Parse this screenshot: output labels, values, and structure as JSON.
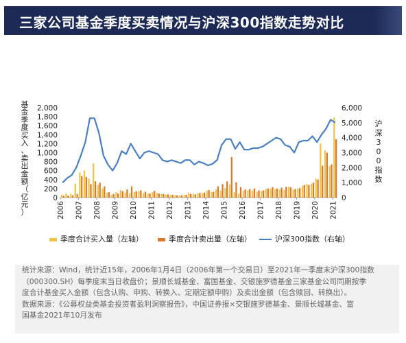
{
  "header": {
    "title": "三家公司基金季度买卖情况与沪深300指数走势对比"
  },
  "chart_data": {
    "type": "bar+line",
    "left_axis_label": "基金季度买入、卖出金额（亿元）",
    "right_axis_label": "沪深300指数",
    "left_ylim": [
      0,
      2000
    ],
    "left_ticks": [
      "0",
      "200",
      "400",
      "600",
      "800",
      "1,000",
      "1,200",
      "1,400",
      "1,600",
      "1,800",
      "2,000"
    ],
    "right_ylim": [
      0,
      6000
    ],
    "right_ticks": [
      "0",
      "1,000",
      "2,000",
      "3,000",
      "4,000",
      "5,000",
      "6,000"
    ],
    "x_ticks": [
      "2006",
      "2007",
      "2008",
      "2009",
      "2010",
      "2011",
      "2012",
      "2013",
      "2014",
      "2015",
      "2016",
      "2017",
      "2018",
      "2019",
      "2020",
      "2021"
    ],
    "x_range": [
      2006.0,
      2021.25
    ],
    "quarters": [
      "2006Q1",
      "2006Q2",
      "2006Q3",
      "2006Q4",
      "2007Q1",
      "2007Q2",
      "2007Q3",
      "2007Q4",
      "2008Q1",
      "2008Q2",
      "2008Q3",
      "2008Q4",
      "2009Q1",
      "2009Q2",
      "2009Q3",
      "2009Q4",
      "2010Q1",
      "2010Q2",
      "2010Q3",
      "2010Q4",
      "2011Q1",
      "2011Q2",
      "2011Q3",
      "2011Q4",
      "2012Q1",
      "2012Q2",
      "2012Q3",
      "2012Q4",
      "2013Q1",
      "2013Q2",
      "2013Q3",
      "2013Q4",
      "2014Q1",
      "2014Q2",
      "2014Q3",
      "2014Q4",
      "2015Q1",
      "2015Q2",
      "2015Q3",
      "2015Q4",
      "2016Q1",
      "2016Q2",
      "2016Q3",
      "2016Q4",
      "2017Q1",
      "2017Q2",
      "2017Q3",
      "2017Q4",
      "2018Q1",
      "2018Q2",
      "2018Q3",
      "2018Q4",
      "2019Q1",
      "2019Q2",
      "2019Q3",
      "2019Q4",
      "2020Q1",
      "2020Q2",
      "2020Q3",
      "2020Q4",
      "2021Q1"
    ],
    "series": [
      {
        "name": "季度合计买入量（左轴）",
        "axis": "left",
        "color": "#f0c348",
        "values": [
          60,
          90,
          80,
          310,
          560,
          600,
          420,
          760,
          280,
          200,
          110,
          60,
          120,
          170,
          110,
          100,
          120,
          140,
          100,
          90,
          120,
          100,
          80,
          70,
          60,
          60,
          50,
          60,
          110,
          80,
          100,
          100,
          150,
          120,
          180,
          150,
          210,
          290,
          120,
          90,
          150,
          160,
          150,
          130,
          150,
          190,
          200,
          190,
          180,
          170,
          240,
          180,
          200,
          260,
          300,
          310,
          420,
          1200,
          1050,
          700,
          1780
        ]
      },
      {
        "name": "季度合计卖出量（左轴）",
        "axis": "left",
        "color": "#d97a2a",
        "values": [
          40,
          40,
          50,
          80,
          480,
          460,
          300,
          360,
          330,
          250,
          120,
          80,
          90,
          140,
          180,
          250,
          140,
          160,
          130,
          90,
          150,
          90,
          80,
          70,
          60,
          50,
          50,
          60,
          80,
          70,
          100,
          110,
          170,
          130,
          250,
          300,
          360,
          900,
          340,
          230,
          180,
          190,
          200,
          160,
          160,
          200,
          230,
          200,
          220,
          240,
          230,
          190,
          210,
          280,
          280,
          330,
          400,
          710,
          1000,
          740,
          1300
        ]
      },
      {
        "name": "沪深300指数（右轴）",
        "axis": "right",
        "color": "#4a7fc0",
        "values": [
          1000,
          1300,
          1500,
          2000,
          2800,
          3700,
          5300,
          5300,
          4300,
          2800,
          2200,
          1800,
          2300,
          3100,
          2900,
          3600,
          3100,
          2600,
          3000,
          3100,
          3000,
          2900,
          2500,
          2400,
          2500,
          2400,
          2300,
          2500,
          2500,
          2200,
          2400,
          2300,
          2150,
          2250,
          2500,
          3500,
          3900,
          3900,
          3250,
          3700,
          3200,
          3200,
          3300,
          3300,
          3400,
          3600,
          3800,
          4000,
          3900,
          3500,
          3400,
          3000,
          3700,
          3800,
          3800,
          4100,
          3700,
          4200,
          4600,
          5200,
          5000
        ]
      }
    ]
  },
  "legend": {
    "buy": "季度合计买入量（左轴）",
    "sell": "季度合计卖出量（左轴）",
    "index": "沪深300指数（右轴）"
  },
  "note": {
    "line1": "统计来源：Wind，统计近15年，2006年1月4日（2006年第一个交易日）至2021年一季度末沪深300指数",
    "line2": "（000300.SH）每季度末当日收盘价；景顺长城基金、富国基金、交银施罗德基金三家基金公司同期按季",
    "line3": "度合计基金买入金额（包含认购、申购、转换入、定期定额申购）及卖出金额（包含赎回、转换出）。",
    "line4": "数据来源：《公募权益类基金投资者盈利洞察报告》，中国证券报×交银施罗德基金、景顺长城基金、富",
    "line5": "国基金2021年10月发布"
  }
}
